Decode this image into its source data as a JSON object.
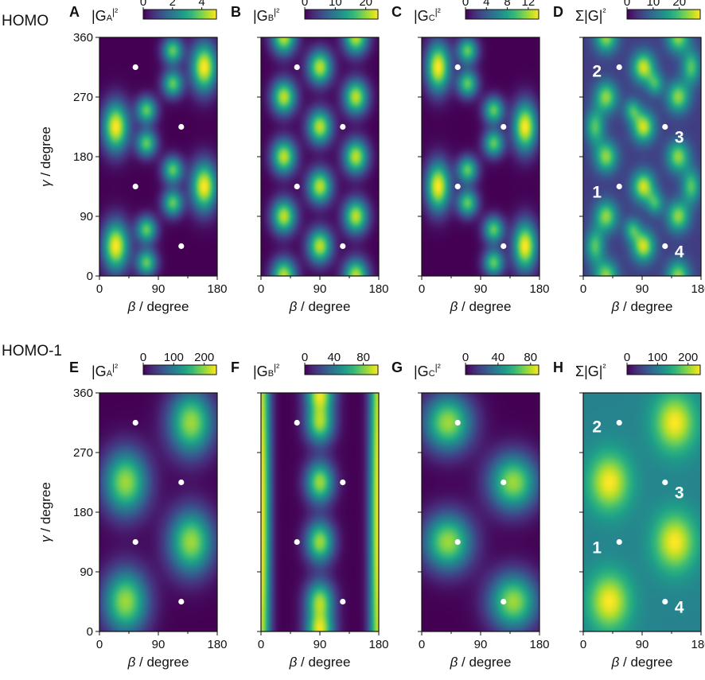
{
  "rows": [
    {
      "label": "HOMO"
    },
    {
      "label": "HOMO-1"
    }
  ],
  "axes": {
    "xlabel_symbol": "β",
    "xlabel_unit": " / degree",
    "ylabel_symbol": "γ",
    "ylabel_unit": " / degree",
    "x_ticks": [
      "0",
      "90",
      "180"
    ],
    "y_ticks": [
      "0",
      "90",
      "180",
      "270",
      "360"
    ]
  },
  "colormap": {
    "name": "viridis",
    "stops": [
      "#440154",
      "#482878",
      "#3e4989",
      "#31688e",
      "#26828e",
      "#1f9e89",
      "#35b779",
      "#6ece58",
      "#b5de2b",
      "#fde725"
    ]
  },
  "chart_data": [
    {
      "letter": "A",
      "type": "heatmap",
      "title": "|G_A|^2",
      "cb_main": "|G",
      "cb_sub": "A",
      "cb_end": "|²",
      "cb_ticks": [
        "0",
        "2",
        "4"
      ],
      "cb_tick_values": [
        0,
        2,
        4
      ],
      "cb_range": [
        0,
        5
      ],
      "xlim": [
        0,
        180
      ],
      "ylim": [
        0,
        360
      ],
      "xlabel": "β / degree",
      "ylabel": "γ / degree",
      "background": 0.0,
      "blobs": [
        {
          "b": 25,
          "g": 225,
          "amp": 1.0,
          "sb": 14,
          "sg": 26
        },
        {
          "b": 25,
          "g": 45,
          "amp": 1.0,
          "sb": 14,
          "sg": 26
        },
        {
          "b": 160,
          "g": 315,
          "amp": 1.0,
          "sb": 14,
          "sg": 26
        },
        {
          "b": 160,
          "g": 135,
          "amp": 1.0,
          "sb": 14,
          "sg": 26
        },
        {
          "b": 72,
          "g": 250,
          "amp": 0.75,
          "sb": 11,
          "sg": 14
        },
        {
          "b": 72,
          "g": 200,
          "amp": 0.75,
          "sb": 11,
          "sg": 14
        },
        {
          "b": 72,
          "g": 70,
          "amp": 0.75,
          "sb": 11,
          "sg": 14
        },
        {
          "b": 72,
          "g": 20,
          "amp": 0.75,
          "sb": 11,
          "sg": 14
        },
        {
          "b": 112,
          "g": 340,
          "amp": 0.75,
          "sb": 11,
          "sg": 14
        },
        {
          "b": 112,
          "g": 290,
          "amp": 0.75,
          "sb": 11,
          "sg": 14
        },
        {
          "b": 112,
          "g": 160,
          "amp": 0.75,
          "sb": 11,
          "sg": 14
        },
        {
          "b": 112,
          "g": 110,
          "amp": 0.75,
          "sb": 11,
          "sg": 14
        }
      ],
      "points": [
        {
          "b": 55,
          "g": 315,
          "label": ""
        },
        {
          "b": 125,
          "g": 225,
          "label": ""
        },
        {
          "b": 55,
          "g": 135,
          "label": ""
        },
        {
          "b": 125,
          "g": 45,
          "label": ""
        }
      ]
    },
    {
      "letter": "B",
      "type": "heatmap",
      "title": "|G_B|^2",
      "cb_main": "|G",
      "cb_sub": "B",
      "cb_end": "|²",
      "cb_ticks": [
        "0",
        "10",
        "20"
      ],
      "cb_tick_values": [
        0,
        10,
        20
      ],
      "cb_range": [
        0,
        24
      ],
      "xlim": [
        0,
        180
      ],
      "ylim": [
        0,
        360
      ],
      "xlabel": "β / degree",
      "ylabel": "γ / degree",
      "background": 0.0,
      "blobs": [
        {
          "b": 90,
          "g": 315,
          "amp": 0.9,
          "sb": 13,
          "sg": 18
        },
        {
          "b": 90,
          "g": 225,
          "amp": 0.9,
          "sb": 13,
          "sg": 18
        },
        {
          "b": 90,
          "g": 135,
          "amp": 0.9,
          "sb": 13,
          "sg": 18
        },
        {
          "b": 90,
          "g": 45,
          "amp": 0.9,
          "sb": 13,
          "sg": 18
        },
        {
          "b": 35,
          "g": 360,
          "amp": 0.9,
          "sb": 13,
          "sg": 18
        },
        {
          "b": 35,
          "g": 270,
          "amp": 0.9,
          "sb": 13,
          "sg": 18
        },
        {
          "b": 35,
          "g": 180,
          "amp": 0.9,
          "sb": 13,
          "sg": 18
        },
        {
          "b": 35,
          "g": 90,
          "amp": 0.9,
          "sb": 13,
          "sg": 18
        },
        {
          "b": 35,
          "g": 0,
          "amp": 0.9,
          "sb": 13,
          "sg": 18
        },
        {
          "b": 145,
          "g": 360,
          "amp": 0.9,
          "sb": 13,
          "sg": 18
        },
        {
          "b": 145,
          "g": 270,
          "amp": 0.9,
          "sb": 13,
          "sg": 18
        },
        {
          "b": 145,
          "g": 180,
          "amp": 0.9,
          "sb": 13,
          "sg": 18
        },
        {
          "b": 145,
          "g": 90,
          "amp": 0.9,
          "sb": 13,
          "sg": 18
        },
        {
          "b": 145,
          "g": 0,
          "amp": 0.9,
          "sb": 13,
          "sg": 18
        }
      ],
      "points": [
        {
          "b": 55,
          "g": 315,
          "label": ""
        },
        {
          "b": 125,
          "g": 225,
          "label": ""
        },
        {
          "b": 55,
          "g": 135,
          "label": ""
        },
        {
          "b": 125,
          "g": 45,
          "label": ""
        }
      ]
    },
    {
      "letter": "C",
      "type": "heatmap",
      "title": "|G_C|^2",
      "cb_main": "|G",
      "cb_sub": "C",
      "cb_end": "|²",
      "cb_ticks": [
        "0",
        "4",
        "8",
        "12"
      ],
      "cb_tick_values": [
        0,
        4,
        8,
        12
      ],
      "cb_range": [
        0,
        14
      ],
      "xlim": [
        0,
        180
      ],
      "ylim": [
        0,
        360
      ],
      "xlabel": "β / degree",
      "ylabel": "γ / degree",
      "background": 0.0,
      "blobs": [
        {
          "b": 25,
          "g": 315,
          "amp": 1.0,
          "sb": 13,
          "sg": 26
        },
        {
          "b": 25,
          "g": 135,
          "amp": 1.0,
          "sb": 13,
          "sg": 26
        },
        {
          "b": 158,
          "g": 225,
          "amp": 1.0,
          "sb": 13,
          "sg": 26
        },
        {
          "b": 158,
          "g": 45,
          "amp": 1.0,
          "sb": 13,
          "sg": 26
        },
        {
          "b": 70,
          "g": 340,
          "amp": 0.75,
          "sb": 11,
          "sg": 14
        },
        {
          "b": 70,
          "g": 290,
          "amp": 0.75,
          "sb": 11,
          "sg": 14
        },
        {
          "b": 70,
          "g": 160,
          "amp": 0.75,
          "sb": 11,
          "sg": 14
        },
        {
          "b": 70,
          "g": 110,
          "amp": 0.75,
          "sb": 11,
          "sg": 14
        },
        {
          "b": 110,
          "g": 250,
          "amp": 0.75,
          "sb": 11,
          "sg": 14
        },
        {
          "b": 110,
          "g": 200,
          "amp": 0.75,
          "sb": 11,
          "sg": 14
        },
        {
          "b": 110,
          "g": 70,
          "amp": 0.75,
          "sb": 11,
          "sg": 14
        },
        {
          "b": 110,
          "g": 20,
          "amp": 0.75,
          "sb": 11,
          "sg": 14
        }
      ],
      "points": [
        {
          "b": 55,
          "g": 315,
          "label": ""
        },
        {
          "b": 125,
          "g": 225,
          "label": ""
        },
        {
          "b": 55,
          "g": 135,
          "label": ""
        },
        {
          "b": 125,
          "g": 45,
          "label": ""
        }
      ]
    },
    {
      "letter": "D",
      "type": "heatmap",
      "title": "Σ|G|^2",
      "cb_main": "Σ|G|",
      "cb_sub": "",
      "cb_end": "²",
      "cb_ticks": [
        "0",
        "10",
        "20"
      ],
      "cb_tick_values": [
        0,
        10,
        20
      ],
      "cb_range": [
        0,
        28
      ],
      "xlim": [
        0,
        180
      ],
      "ylim": [
        0,
        360
      ],
      "xlabel": "β / degree",
      "ylabel": "γ / degree",
      "background": 0.18,
      "blobs": [
        {
          "b": 18,
          "g": 225,
          "amp": 0.55,
          "sb": 10,
          "sg": 18
        },
        {
          "b": 18,
          "g": 45,
          "amp": 0.55,
          "sb": 10,
          "sg": 18
        },
        {
          "b": 165,
          "g": 315,
          "amp": 0.55,
          "sb": 10,
          "sg": 18
        },
        {
          "b": 165,
          "g": 135,
          "amp": 0.55,
          "sb": 10,
          "sg": 18
        },
        {
          "b": 35,
          "g": 180,
          "amp": 0.65,
          "sb": 12,
          "sg": 16
        },
        {
          "b": 35,
          "g": 90,
          "amp": 0.65,
          "sb": 12,
          "sg": 16
        },
        {
          "b": 35,
          "g": 270,
          "amp": 0.65,
          "sb": 12,
          "sg": 16
        },
        {
          "b": 35,
          "g": 0,
          "amp": 0.65,
          "sb": 12,
          "sg": 16
        },
        {
          "b": 35,
          "g": 360,
          "amp": 0.65,
          "sb": 12,
          "sg": 16
        },
        {
          "b": 145,
          "g": 180,
          "amp": 0.65,
          "sb": 12,
          "sg": 16
        },
        {
          "b": 145,
          "g": 90,
          "amp": 0.65,
          "sb": 12,
          "sg": 16
        },
        {
          "b": 145,
          "g": 270,
          "amp": 0.65,
          "sb": 12,
          "sg": 16
        },
        {
          "b": 145,
          "g": 0,
          "amp": 0.65,
          "sb": 12,
          "sg": 16
        },
        {
          "b": 145,
          "g": 360,
          "amp": 0.65,
          "sb": 12,
          "sg": 16
        },
        {
          "b": 92,
          "g": 225,
          "amp": 0.75,
          "sb": 12,
          "sg": 16
        },
        {
          "b": 92,
          "g": 315,
          "amp": 0.75,
          "sb": 12,
          "sg": 16
        },
        {
          "b": 92,
          "g": 135,
          "amp": 0.75,
          "sb": 12,
          "sg": 16
        },
        {
          "b": 92,
          "g": 45,
          "amp": 0.75,
          "sb": 12,
          "sg": 16
        },
        {
          "b": 75,
          "g": 250,
          "amp": 0.45,
          "sb": 9,
          "sg": 12
        },
        {
          "b": 75,
          "g": 70,
          "amp": 0.45,
          "sb": 9,
          "sg": 12
        },
        {
          "b": 110,
          "g": 290,
          "amp": 0.45,
          "sb": 9,
          "sg": 12
        },
        {
          "b": 110,
          "g": 110,
          "amp": 0.45,
          "sb": 9,
          "sg": 12
        }
      ],
      "points": [
        {
          "b": 55,
          "g": 315,
          "label": "2"
        },
        {
          "b": 125,
          "g": 225,
          "label": "3"
        },
        {
          "b": 55,
          "g": 135,
          "label": "1"
        },
        {
          "b": 125,
          "g": 45,
          "label": "4"
        }
      ]
    },
    {
      "letter": "E",
      "type": "heatmap",
      "title": "|G_A|^2",
      "cb_main": "|G",
      "cb_sub": "A",
      "cb_end": "|²",
      "cb_ticks": [
        "0",
        "100",
        "200"
      ],
      "cb_tick_values": [
        0,
        100,
        200
      ],
      "cb_range": [
        0,
        240
      ],
      "xlim": [
        0,
        180
      ],
      "ylim": [
        0,
        360
      ],
      "xlabel": "β / degree",
      "ylabel": "γ / degree",
      "background": 0.0,
      "blobs": [
        {
          "b": 40,
          "g": 225,
          "amp": 0.85,
          "sb": 24,
          "sg": 34
        },
        {
          "b": 40,
          "g": 45,
          "amp": 0.85,
          "sb": 24,
          "sg": 34
        },
        {
          "b": 140,
          "g": 315,
          "amp": 0.85,
          "sb": 24,
          "sg": 34
        },
        {
          "b": 140,
          "g": 135,
          "amp": 0.85,
          "sb": 24,
          "sg": 34
        }
      ],
      "points": [
        {
          "b": 55,
          "g": 315,
          "label": ""
        },
        {
          "b": 125,
          "g": 225,
          "label": ""
        },
        {
          "b": 55,
          "g": 135,
          "label": ""
        },
        {
          "b": 125,
          "g": 45,
          "label": ""
        }
      ]
    },
    {
      "letter": "F",
      "type": "heatmap",
      "title": "|G_B|^2",
      "cb_main": "|G",
      "cb_sub": "B",
      "cb_end": "|²",
      "cb_ticks": [
        "0",
        "40",
        "80"
      ],
      "cb_tick_values": [
        0,
        40,
        80
      ],
      "cb_range": [
        0,
        100
      ],
      "xlim": [
        0,
        180
      ],
      "ylim": [
        0,
        360
      ],
      "xlabel": "β / degree",
      "ylabel": "γ / degree",
      "background": 0.0,
      "blobs": [
        {
          "b": 0,
          "g": 180,
          "amp": 1.0,
          "sb": 10,
          "sg": 400
        },
        {
          "b": 180,
          "g": 180,
          "amp": 1.0,
          "sb": 10,
          "sg": 400
        },
        {
          "b": 90,
          "g": 315,
          "amp": 0.85,
          "sb": 15,
          "sg": 22
        },
        {
          "b": 90,
          "g": 225,
          "amp": 0.85,
          "sb": 15,
          "sg": 22
        },
        {
          "b": 90,
          "g": 135,
          "amp": 0.85,
          "sb": 15,
          "sg": 22
        },
        {
          "b": 90,
          "g": 45,
          "amp": 0.85,
          "sb": 15,
          "sg": 22
        },
        {
          "b": 90,
          "g": 0,
          "amp": 0.85,
          "sb": 15,
          "sg": 18
        },
        {
          "b": 90,
          "g": 360,
          "amp": 0.85,
          "sb": 15,
          "sg": 18
        }
      ],
      "points": [
        {
          "b": 55,
          "g": 315,
          "label": ""
        },
        {
          "b": 125,
          "g": 225,
          "label": ""
        },
        {
          "b": 55,
          "g": 135,
          "label": ""
        },
        {
          "b": 125,
          "g": 45,
          "label": ""
        }
      ]
    },
    {
      "letter": "G",
      "type": "heatmap",
      "title": "|G_C|^2",
      "cb_main": "|G",
      "cb_sub": "C",
      "cb_end": "|²",
      "cb_ticks": [
        "0",
        "40",
        "80"
      ],
      "cb_tick_values": [
        0,
        40,
        80
      ],
      "cb_range": [
        0,
        90
      ],
      "xlim": [
        0,
        180
      ],
      "ylim": [
        0,
        360
      ],
      "xlabel": "β / degree",
      "ylabel": "γ / degree",
      "background": 0.0,
      "blobs": [
        {
          "b": 40,
          "g": 315,
          "amp": 0.85,
          "sb": 26,
          "sg": 30
        },
        {
          "b": 40,
          "g": 135,
          "amp": 0.85,
          "sb": 26,
          "sg": 30
        },
        {
          "b": 140,
          "g": 225,
          "amp": 0.85,
          "sb": 26,
          "sg": 30
        },
        {
          "b": 140,
          "g": 45,
          "amp": 0.85,
          "sb": 26,
          "sg": 30
        }
      ],
      "points": [
        {
          "b": 55,
          "g": 315,
          "label": ""
        },
        {
          "b": 125,
          "g": 225,
          "label": ""
        },
        {
          "b": 55,
          "g": 135,
          "label": ""
        },
        {
          "b": 125,
          "g": 45,
          "label": ""
        }
      ]
    },
    {
      "letter": "H",
      "type": "heatmap",
      "title": "Σ|G|^2",
      "cb_main": "Σ|G|",
      "cb_sub": "",
      "cb_end": "²",
      "cb_ticks": [
        "0",
        "100",
        "200"
      ],
      "cb_tick_values": [
        0,
        100,
        200
      ],
      "cb_range": [
        0,
        240
      ],
      "xlim": [
        0,
        180
      ],
      "ylim": [
        0,
        360
      ],
      "xlabel": "β / degree",
      "ylabel": "γ / degree",
      "background": 0.45,
      "blobs": [
        {
          "b": 40,
          "g": 225,
          "amp": 0.55,
          "sb": 22,
          "sg": 30
        },
        {
          "b": 40,
          "g": 45,
          "amp": 0.55,
          "sb": 22,
          "sg": 30
        },
        {
          "b": 140,
          "g": 315,
          "amp": 0.55,
          "sb": 22,
          "sg": 30
        },
        {
          "b": 140,
          "g": 135,
          "amp": 0.55,
          "sb": 22,
          "sg": 30
        }
      ],
      "points": [
        {
          "b": 55,
          "g": 315,
          "label": "2"
        },
        {
          "b": 125,
          "g": 225,
          "label": "3"
        },
        {
          "b": 55,
          "g": 135,
          "label": "1"
        },
        {
          "b": 125,
          "g": 45,
          "label": "4"
        }
      ]
    }
  ]
}
